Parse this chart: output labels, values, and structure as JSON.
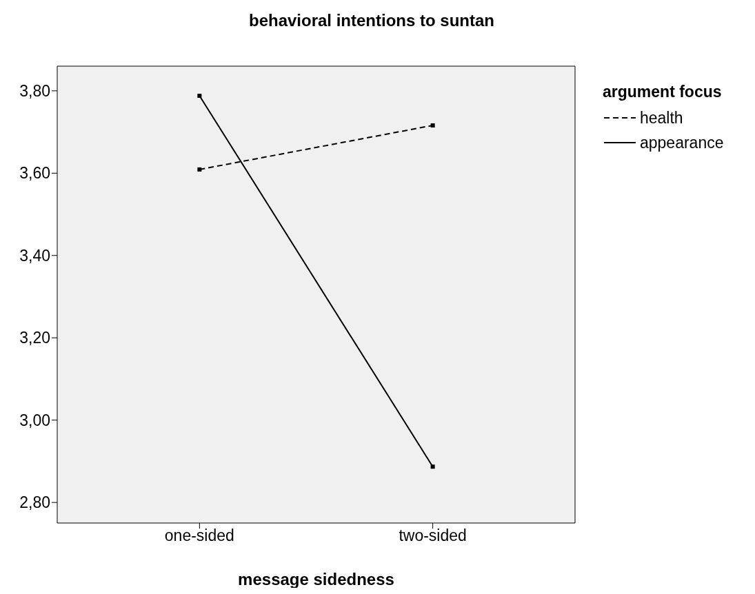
{
  "chart_data": {
    "type": "line",
    "title": "behavioral intentions to suntan",
    "xlabel": "message sidedness",
    "legend_title": "argument focus",
    "categories": [
      "one-sided",
      "two-sided"
    ],
    "series": [
      {
        "name": "health",
        "color": "#000000",
        "line_style": "dashed",
        "values": [
          3.609,
          3.716
        ]
      },
      {
        "name": "appearance",
        "color": "#000000",
        "line_style": "solid",
        "values": [
          3.788,
          2.887
        ]
      }
    ],
    "ylim": [
      2.75,
      3.86
    ],
    "yticks": [
      {
        "value": 2.8,
        "label": "2,80"
      },
      {
        "value": 3.0,
        "label": "3,00"
      },
      {
        "value": 3.2,
        "label": "3,20"
      },
      {
        "value": 3.4,
        "label": "3,40"
      },
      {
        "value": 3.6,
        "label": "3,60"
      },
      {
        "value": 3.8,
        "label": "3,80"
      }
    ],
    "grid": false,
    "legend": "top right",
    "marker": "square"
  }
}
